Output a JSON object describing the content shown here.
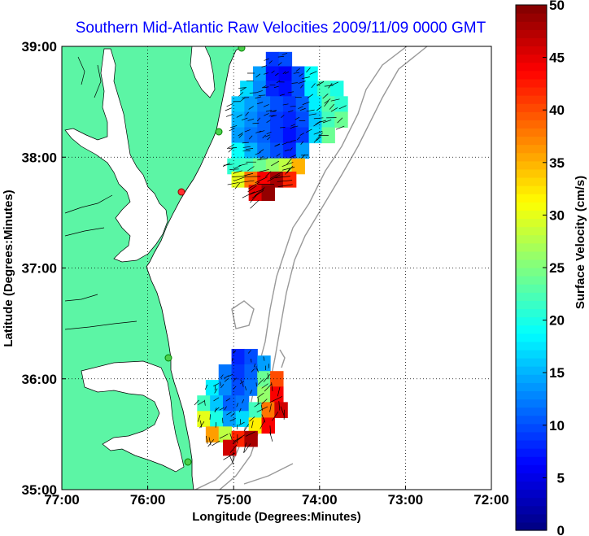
{
  "chart_data": {
    "type": "heatmap",
    "title": "Southern Mid-Atlantic Raw Velocities 2009/11/09 0000 GMT",
    "xlabel": "Longitude (Degrees:Minutes)",
    "ylabel": "Latitude (Degrees:Minutes)",
    "colorbar_label": "Surface Velocity (cm/s)",
    "x_ticks": [
      "77:00",
      "76:00",
      "75:00",
      "74:00",
      "73:00",
      "72:00"
    ],
    "y_ticks": [
      "39:00",
      "38:00",
      "37:00",
      "36:00",
      "35:00"
    ],
    "colorbar_ticks": [
      "50",
      "45",
      "40",
      "35",
      "30",
      "25",
      "20",
      "15",
      "10",
      "5",
      "0"
    ],
    "xlim": [
      -77,
      -72
    ],
    "ylim": [
      35,
      39
    ],
    "clim": [
      0,
      50
    ],
    "grid": true,
    "grid_style": "dotted",
    "land_color": "#5cf5a5",
    "ocean_color": "#ffffff",
    "colormap": "jet",
    "regions": [
      {
        "name": "northern",
        "cells": [
          [
            -74.55,
            38.88,
            9
          ],
          [
            -74.4,
            38.88,
            10
          ],
          [
            -74.7,
            38.75,
            14
          ],
          [
            -74.55,
            38.75,
            7
          ],
          [
            -74.4,
            38.75,
            6
          ],
          [
            -74.25,
            38.75,
            10
          ],
          [
            -74.1,
            38.75,
            19
          ],
          [
            -74.85,
            38.62,
            17
          ],
          [
            -74.7,
            38.62,
            13
          ],
          [
            -74.55,
            38.62,
            8
          ],
          [
            -74.4,
            38.62,
            7
          ],
          [
            -74.25,
            38.62,
            10
          ],
          [
            -74.1,
            38.62,
            18
          ],
          [
            -73.95,
            38.62,
            22
          ],
          [
            -73.8,
            38.62,
            20
          ],
          [
            -74.95,
            38.48,
            16
          ],
          [
            -74.8,
            38.48,
            14
          ],
          [
            -74.65,
            38.48,
            12
          ],
          [
            -74.5,
            38.48,
            10
          ],
          [
            -74.35,
            38.48,
            9
          ],
          [
            -74.2,
            38.48,
            11
          ],
          [
            -74.05,
            38.48,
            18
          ],
          [
            -73.9,
            38.48,
            23
          ],
          [
            -73.75,
            38.48,
            21
          ],
          [
            -74.95,
            38.34,
            15
          ],
          [
            -74.8,
            38.34,
            13
          ],
          [
            -74.65,
            38.34,
            11
          ],
          [
            -74.5,
            38.34,
            9
          ],
          [
            -74.35,
            38.34,
            8
          ],
          [
            -74.2,
            38.34,
            10
          ],
          [
            -74.05,
            38.34,
            16
          ],
          [
            -73.9,
            38.34,
            22
          ],
          [
            -73.75,
            38.34,
            24
          ],
          [
            -74.95,
            38.2,
            14
          ],
          [
            -74.8,
            38.2,
            12
          ],
          [
            -74.65,
            38.2,
            11
          ],
          [
            -74.5,
            38.2,
            9
          ],
          [
            -74.35,
            38.2,
            7
          ],
          [
            -74.2,
            38.2,
            9
          ],
          [
            -74.05,
            38.2,
            17
          ],
          [
            -73.9,
            38.2,
            24
          ],
          [
            -74.95,
            38.06,
            19
          ],
          [
            -74.8,
            38.06,
            15
          ],
          [
            -74.65,
            38.06,
            12
          ],
          [
            -74.5,
            38.06,
            10
          ],
          [
            -74.35,
            38.06,
            8
          ],
          [
            -74.2,
            38.06,
            14
          ],
          [
            -75.0,
            37.92,
            21
          ],
          [
            -74.85,
            37.92,
            22
          ],
          [
            -74.7,
            37.92,
            24
          ],
          [
            -74.55,
            37.92,
            26
          ],
          [
            -74.4,
            37.92,
            28
          ],
          [
            -74.25,
            37.92,
            35
          ],
          [
            -74.95,
            37.8,
            30
          ],
          [
            -74.8,
            37.8,
            38
          ],
          [
            -74.65,
            37.8,
            44
          ],
          [
            -74.5,
            37.8,
            48
          ],
          [
            -74.35,
            37.8,
            42
          ],
          [
            -74.75,
            37.68,
            45
          ],
          [
            -74.6,
            37.68,
            49
          ]
        ]
      },
      {
        "name": "southern",
        "cells": [
          [
            -74.95,
            36.2,
            8
          ],
          [
            -74.8,
            36.2,
            10
          ],
          [
            -74.65,
            36.14,
            14
          ],
          [
            -75.1,
            36.06,
            12
          ],
          [
            -74.95,
            36.06,
            9
          ],
          [
            -74.8,
            36.06,
            11
          ],
          [
            -74.65,
            36.0,
            24
          ],
          [
            -74.5,
            36.0,
            40
          ],
          [
            -75.25,
            35.92,
            18
          ],
          [
            -75.1,
            35.92,
            13
          ],
          [
            -74.95,
            35.92,
            10
          ],
          [
            -74.8,
            35.92,
            12
          ],
          [
            -74.65,
            35.86,
            26
          ],
          [
            -74.5,
            35.86,
            44
          ],
          [
            -75.35,
            35.78,
            22
          ],
          [
            -75.2,
            35.78,
            16
          ],
          [
            -75.05,
            35.78,
            11
          ],
          [
            -74.9,
            35.78,
            12
          ],
          [
            -74.75,
            35.72,
            22
          ],
          [
            -74.6,
            35.72,
            38
          ],
          [
            -74.45,
            35.72,
            46
          ],
          [
            -75.35,
            35.64,
            30
          ],
          [
            -75.2,
            35.64,
            20
          ],
          [
            -75.05,
            35.64,
            14
          ],
          [
            -74.9,
            35.64,
            17
          ],
          [
            -74.75,
            35.58,
            32
          ],
          [
            -74.6,
            35.58,
            44
          ],
          [
            -75.25,
            35.5,
            36
          ],
          [
            -75.1,
            35.5,
            28
          ],
          [
            -74.95,
            35.46,
            42
          ],
          [
            -74.8,
            35.46,
            48
          ],
          [
            -75.05,
            35.38,
            46
          ]
        ]
      }
    ]
  }
}
